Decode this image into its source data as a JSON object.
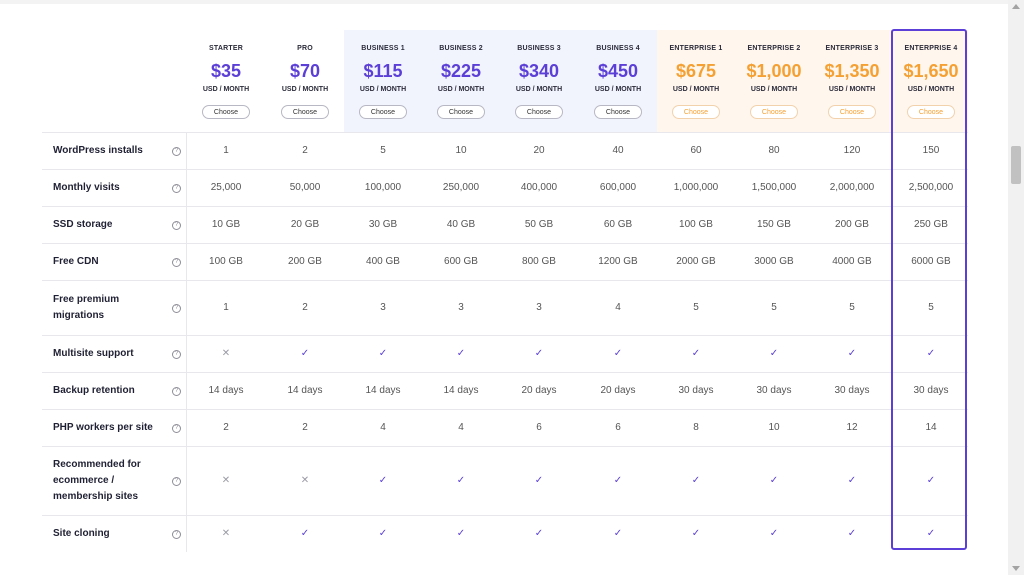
{
  "plans": [
    {
      "name": "STARTER",
      "price": "$35",
      "period": "USD / MONTH",
      "button": "Choose",
      "tier": "starter"
    },
    {
      "name": "PRO",
      "price": "$70",
      "period": "USD / MONTH",
      "button": "Choose",
      "tier": "starter"
    },
    {
      "name": "BUSINESS 1",
      "price": "$115",
      "period": "USD / MONTH",
      "button": "Choose",
      "tier": "business"
    },
    {
      "name": "BUSINESS 2",
      "price": "$225",
      "period": "USD / MONTH",
      "button": "Choose",
      "tier": "business"
    },
    {
      "name": "BUSINESS 3",
      "price": "$340",
      "period": "USD / MONTH",
      "button": "Choose",
      "tier": "business"
    },
    {
      "name": "BUSINESS 4",
      "price": "$450",
      "period": "USD / MONTH",
      "button": "Choose",
      "tier": "business"
    },
    {
      "name": "ENTERPRISE 1",
      "price": "$675",
      "period": "USD / MONTH",
      "button": "Choose",
      "tier": "enterprise"
    },
    {
      "name": "ENTERPRISE 2",
      "price": "$1,000",
      "period": "USD / MONTH",
      "button": "Choose",
      "tier": "enterprise"
    },
    {
      "name": "ENTERPRISE 3",
      "price": "$1,350",
      "period": "USD / MONTH",
      "button": "Choose",
      "tier": "enterprise"
    },
    {
      "name": "ENTERPRISE 4",
      "price": "$1,650",
      "period": "USD / MONTH",
      "button": "Choose",
      "tier": "enterprise"
    }
  ],
  "features": [
    {
      "label": "WordPress installs",
      "values": [
        "1",
        "2",
        "5",
        "10",
        "20",
        "40",
        "60",
        "80",
        "120",
        "150"
      ]
    },
    {
      "label": "Monthly visits",
      "values": [
        "25,000",
        "50,000",
        "100,000",
        "250,000",
        "400,000",
        "600,000",
        "1,000,000",
        "1,500,000",
        "2,000,000",
        "2,500,000"
      ]
    },
    {
      "label": "SSD storage",
      "values": [
        "10 GB",
        "20 GB",
        "30 GB",
        "40 GB",
        "50 GB",
        "60 GB",
        "100 GB",
        "150 GB",
        "200 GB",
        "250 GB"
      ]
    },
    {
      "label": "Free CDN",
      "values": [
        "100 GB",
        "200 GB",
        "400 GB",
        "600 GB",
        "800 GB",
        "1200 GB",
        "2000 GB",
        "3000 GB",
        "4000 GB",
        "6000 GB"
      ]
    },
    {
      "label": "Free premium migrations",
      "values": [
        "1",
        "2",
        "3",
        "3",
        "3",
        "4",
        "5",
        "5",
        "5",
        "5"
      ]
    },
    {
      "label": "Multisite support",
      "values": [
        "✕",
        "✓",
        "✓",
        "✓",
        "✓",
        "✓",
        "✓",
        "✓",
        "✓",
        "✓"
      ]
    },
    {
      "label": "Backup retention",
      "values": [
        "14 days",
        "14 days",
        "14 days",
        "14 days",
        "20 days",
        "20 days",
        "30 days",
        "30 days",
        "30 days",
        "30 days"
      ]
    },
    {
      "label": "PHP workers per site",
      "values": [
        "2",
        "2",
        "4",
        "4",
        "6",
        "6",
        "8",
        "10",
        "12",
        "14"
      ]
    },
    {
      "label": "Recommended for ecommerce / membership sites",
      "values": [
        "✕",
        "✕",
        "✓",
        "✓",
        "✓",
        "✓",
        "✓",
        "✓",
        "✓",
        "✓"
      ]
    },
    {
      "label": "Site cloning",
      "values": [
        "✕",
        "✓",
        "✓",
        "✓",
        "✓",
        "✓",
        "✓",
        "✓",
        "✓",
        "✓"
      ]
    }
  ],
  "info_icon_glyph": "?",
  "colors": {
    "accent_purple": "#5b3fd6",
    "accent_orange": "#f5a032",
    "business_bg": "#f1f3fd",
    "enterprise_bg": "#fff6ee"
  }
}
